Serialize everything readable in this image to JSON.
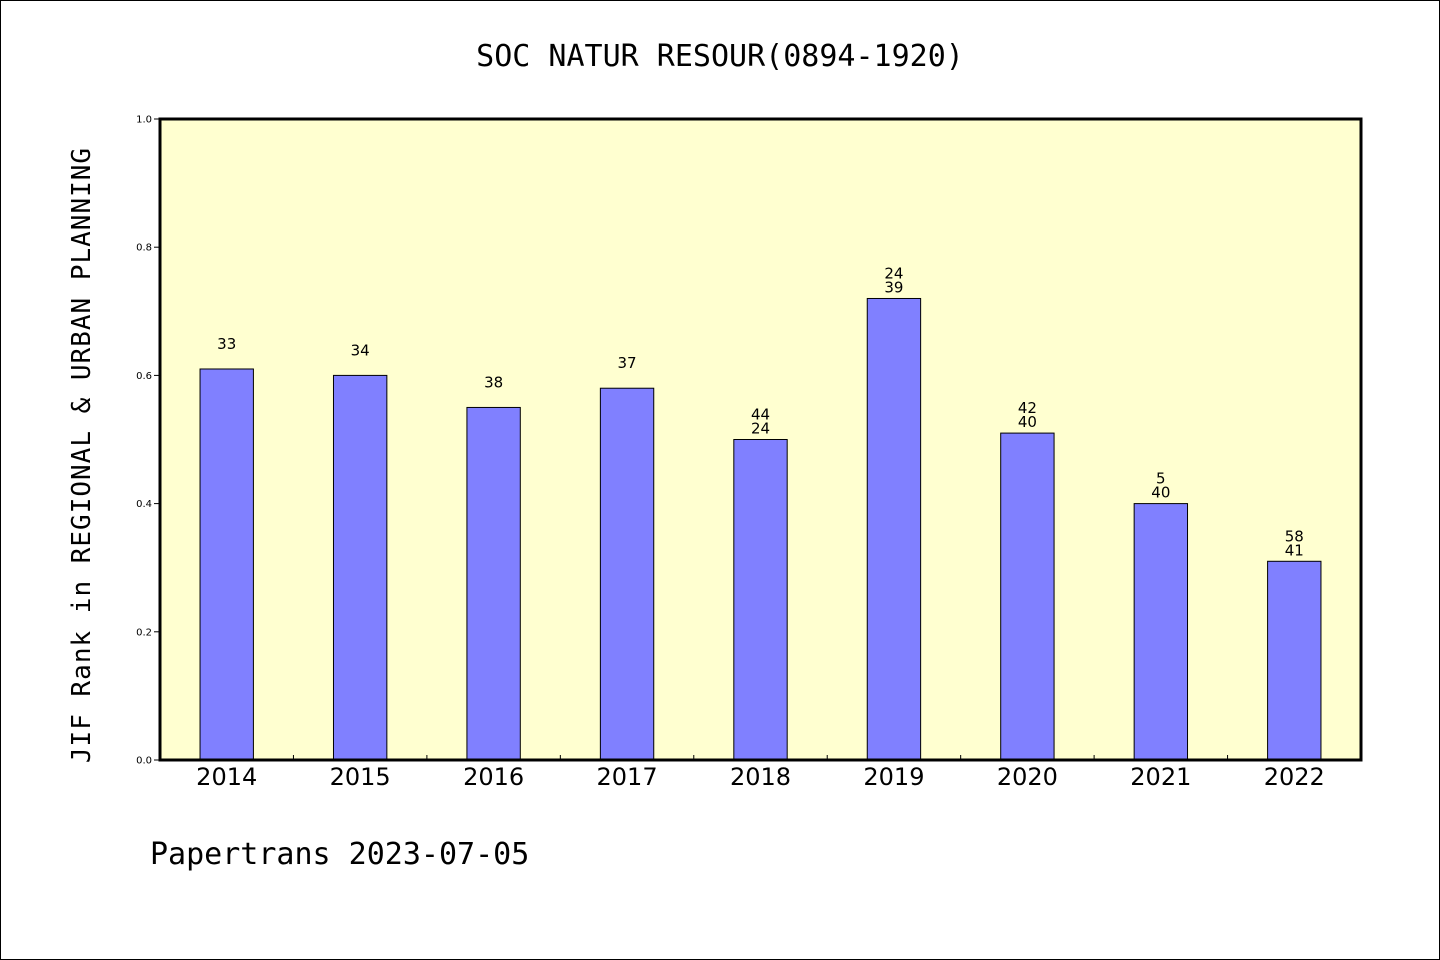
{
  "footer": "Papertrans 2023-07-05",
  "colors": {
    "plot_background": "#ffffd0",
    "bar_fill": "#8080ff",
    "bar_stroke": "#000000",
    "axis": "#000000"
  },
  "chart_data": {
    "type": "bar",
    "title": "SOC NATUR RESOUR(0894-1920)",
    "xlabel": "",
    "ylabel": "JIF Rank in REGIONAL & URBAN PLANNING",
    "ylim": [
      0,
      1.0
    ],
    "yticks": [
      "0.0",
      "0.2",
      "0.4",
      "0.6",
      "0.8",
      "1.0"
    ],
    "grid": false,
    "categories": [
      "2014",
      "2015",
      "2016",
      "2017",
      "2018",
      "2019",
      "2020",
      "2021",
      "2022"
    ],
    "values": [
      0.61,
      0.6,
      0.55,
      0.58,
      0.5,
      0.72,
      0.51,
      0.4,
      0.31
    ],
    "data_labels": [
      [
        "33"
      ],
      [
        "34"
      ],
      [
        "38"
      ],
      [
        "37"
      ],
      [
        "44",
        "24"
      ],
      [
        "24",
        "39"
      ],
      [
        "42",
        "40"
      ],
      [
        "5",
        "40"
      ],
      [
        "58",
        "41"
      ]
    ]
  }
}
